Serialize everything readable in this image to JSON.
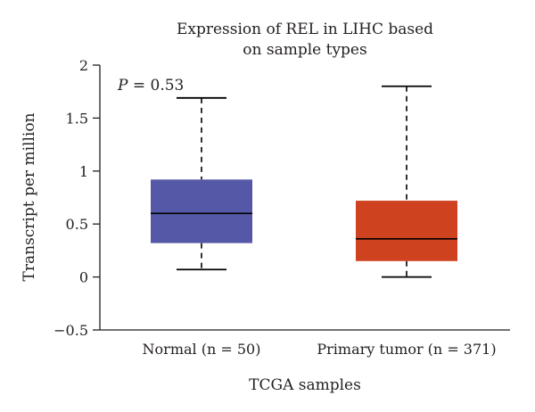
{
  "chart_data": {
    "type": "box",
    "title_lines": [
      "Expression of REL in LIHC based",
      "on sample types"
    ],
    "xlabel": "TCGA samples",
    "ylabel": "Transcript per million",
    "ylim": [
      -0.5,
      2
    ],
    "yticks": [
      {
        "value": -0.5,
        "label": "−0.5"
      },
      {
        "value": 0,
        "label": "0"
      },
      {
        "value": 0.5,
        "label": "0.5"
      },
      {
        "value": 1,
        "label": "1"
      },
      {
        "value": 1.5,
        "label": "1.5"
      },
      {
        "value": 2,
        "label": "2"
      }
    ],
    "annotation": {
      "italic": "P",
      "rest": " = 0.53"
    },
    "categories": [
      "Normal (n = 50)",
      "Primary tumor (n = 371)"
    ],
    "boxes": [
      {
        "min": 0.07,
        "q1": 0.32,
        "median": 0.6,
        "q3": 0.92,
        "max": 1.69,
        "color": "#5558a6"
      },
      {
        "min": 0.0,
        "q1": 0.15,
        "median": 0.36,
        "q3": 0.72,
        "max": 1.8,
        "color": "#cf4220"
      }
    ]
  }
}
